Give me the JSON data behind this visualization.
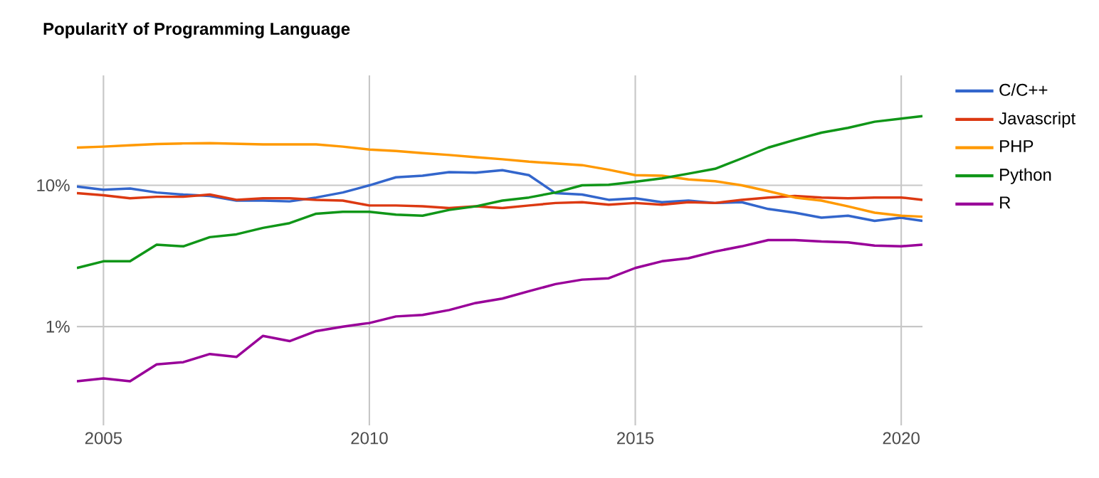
{
  "chart_data": {
    "type": "line",
    "title": "PopularitY of Programming Language",
    "x": [
      2004.5,
      2005,
      2005.5,
      2006,
      2006.5,
      2007,
      2007.5,
      2008,
      2008.5,
      2009,
      2009.5,
      2010,
      2010.5,
      2011,
      2011.5,
      2012,
      2012.5,
      2013,
      2013.5,
      2014,
      2014.5,
      2015,
      2015.5,
      2016,
      2016.5,
      2017,
      2017.5,
      2018,
      2018.5,
      2019,
      2019.5,
      2020,
      2020.4
    ],
    "series": [
      {
        "name": "C/C++",
        "color": "#3366cc",
        "values": [
          9.8,
          9.3,
          9.5,
          8.9,
          8.6,
          8.4,
          7.8,
          7.8,
          7.7,
          8.2,
          8.9,
          10,
          11.4,
          11.7,
          12.4,
          12.3,
          12.8,
          11.8,
          8.8,
          8.6,
          7.9,
          8.1,
          7.6,
          7.8,
          7.5,
          7.6,
          6.8,
          6.4,
          5.9,
          6.1,
          5.6,
          5.9,
          5.6
        ]
      },
      {
        "name": "Javascript",
        "color": "#dc3912",
        "values": [
          8.8,
          8.5,
          8.1,
          8.3,
          8.3,
          8.6,
          7.9,
          8.1,
          8.1,
          7.9,
          7.8,
          7.2,
          7.2,
          7.1,
          6.9,
          7.1,
          6.9,
          7.2,
          7.5,
          7.6,
          7.3,
          7.5,
          7.3,
          7.6,
          7.5,
          7.9,
          8.2,
          8.4,
          8.2,
          8.1,
          8.2,
          8.2,
          7.9
        ]
      },
      {
        "name": "PHP",
        "color": "#ff9900",
        "values": [
          18.5,
          18.8,
          19.2,
          19.6,
          19.8,
          19.9,
          19.7,
          19.5,
          19.5,
          19.5,
          18.8,
          17.9,
          17.5,
          16.9,
          16.4,
          15.8,
          15.3,
          14.7,
          14.3,
          13.9,
          12.9,
          11.8,
          11.7,
          11,
          10.7,
          10,
          9.1,
          8.2,
          7.8,
          7.1,
          6.4,
          6.1,
          6.0
        ]
      },
      {
        "name": "Python",
        "color": "#109618",
        "values": [
          2.6,
          2.9,
          2.9,
          3.8,
          3.7,
          4.3,
          4.5,
          5.0,
          5.4,
          6.3,
          6.5,
          6.5,
          6.2,
          6.1,
          6.7,
          7.1,
          7.8,
          8.2,
          8.9,
          10,
          10.1,
          10.6,
          11.2,
          12.1,
          13.1,
          15.5,
          18.5,
          21,
          23.6,
          25.5,
          28.2,
          29.7,
          30.9
        ]
      },
      {
        "name": "R",
        "color": "#990099",
        "values": [
          0.41,
          0.43,
          0.41,
          0.54,
          0.56,
          0.64,
          0.61,
          0.86,
          0.79,
          0.93,
          1.0,
          1.06,
          1.18,
          1.21,
          1.31,
          1.47,
          1.58,
          1.78,
          2.0,
          2.15,
          2.2,
          2.6,
          2.9,
          3.05,
          3.4,
          3.7,
          4.1,
          4.1,
          4.0,
          3.95,
          3.75,
          3.7,
          3.8
        ]
      }
    ],
    "xlim": [
      2004.5,
      2020.4
    ],
    "xticks": [
      2005,
      2010,
      2015,
      2020
    ],
    "ylim": [
      0.2,
      60
    ],
    "yticks": [
      {
        "value": 1,
        "label": "1%"
      },
      {
        "value": 10,
        "label": "10%"
      }
    ],
    "log": "y",
    "grid": true,
    "legend": "right",
    "marker": "none",
    "line_style": "solid"
  }
}
